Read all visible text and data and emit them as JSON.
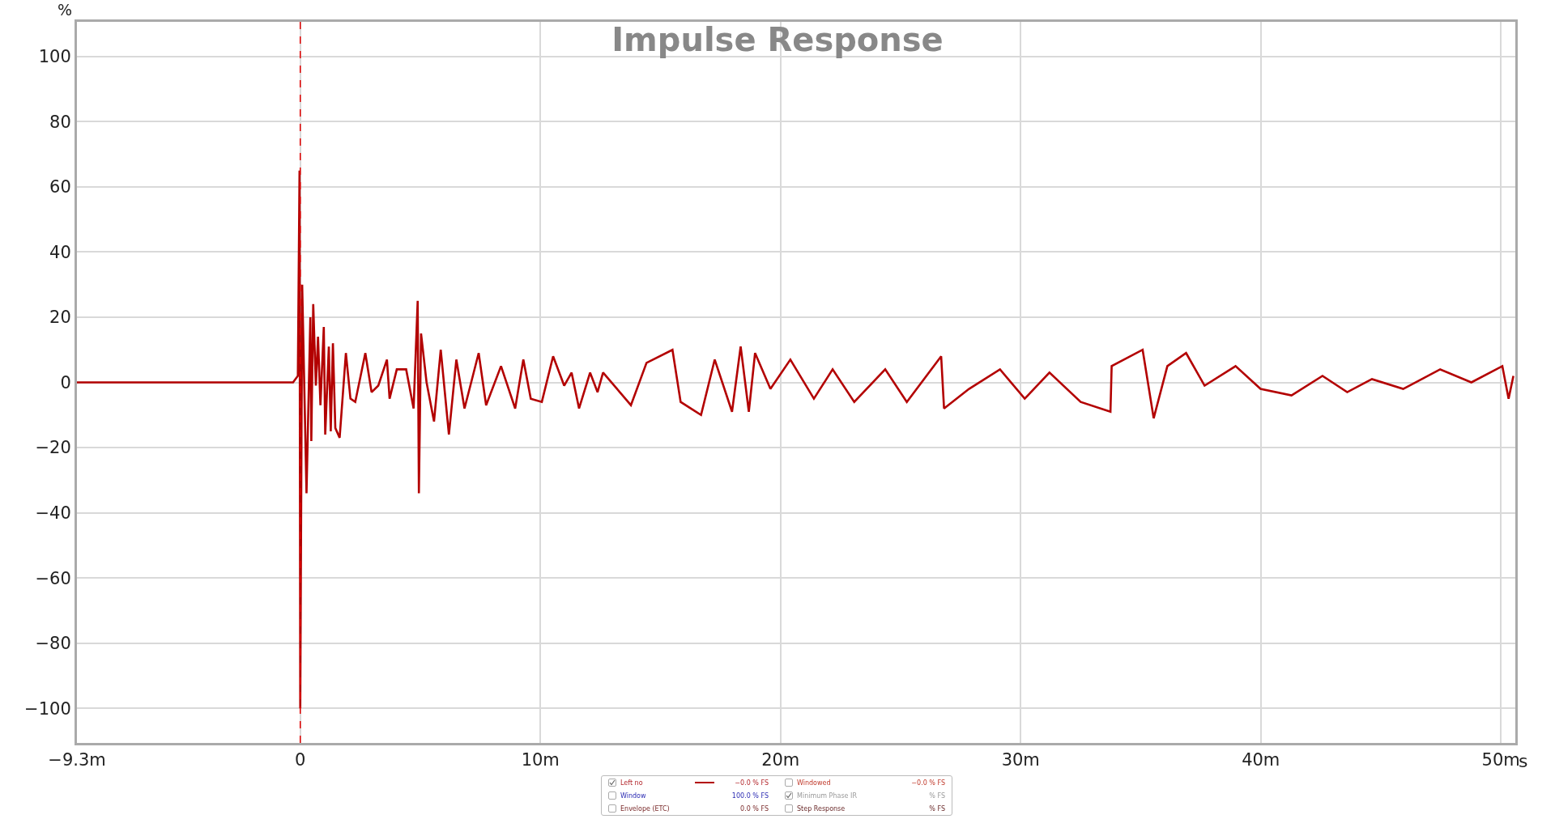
{
  "chart_data": {
    "type": "line",
    "title": "Impulse Response",
    "xlabel": "s",
    "ylabel": "%",
    "xlim": [
      -9.3,
      50.6
    ],
    "ylim": [
      -110.6,
      110.6
    ],
    "xticks": [
      {
        "value": -9.3,
        "label": "−9.3m"
      },
      0,
      {
        "value": 10,
        "label": "10m"
      },
      {
        "value": 20,
        "label": "20m"
      },
      {
        "value": 30,
        "label": "30m"
      },
      {
        "value": 40,
        "label": "40m"
      },
      {
        "value": 50,
        "label": "50m"
      }
    ],
    "yticks": [
      {
        "value": -100,
        "label": "−100"
      },
      {
        "value": -80,
        "label": "−80"
      },
      {
        "value": -60,
        "label": "−60"
      },
      {
        "value": -40,
        "label": "−40"
      },
      {
        "value": -20,
        "label": "−20"
      },
      0,
      20,
      40,
      60,
      80,
      100
    ],
    "grid": true,
    "legend": "bottom",
    "marker": "none",
    "line_style": "solid",
    "ref_lines": [
      {
        "axis": "x",
        "value": 0,
        "label": null,
        "color": "#e00000",
        "line_style": "dashed"
      }
    ],
    "annotations": [
      "−0.0 % FS",
      "Windowed",
      "−0.0 % FS",
      "Window",
      "100.0 % FS",
      "Minimum Phase IR",
      "% FS",
      "Envelope (ETC)",
      "0.0 % FS",
      "Step Response",
      "% FS"
    ],
    "series": [
      {
        "name": "Left no",
        "color": "#b30000",
        "x": [
          -9.3,
          -0.3,
          -0.1,
          -0.03,
          0,
          0.08,
          0.26,
          0.42,
          0.46,
          0.54,
          0.65,
          0.74,
          0.84,
          0.98,
          1.04,
          1.19,
          1.27,
          1.36,
          1.46,
          1.64,
          1.9,
          2.09,
          2.29,
          2.71,
          2.97,
          3.25,
          3.61,
          3.72,
          4.02,
          4.41,
          4.72,
          4.89,
          4.94,
          5.03,
          5.26,
          5.57,
          5.85,
          6.19,
          6.5,
          6.84,
          7.43,
          7.74,
          8.36,
          8.95,
          9.29,
          9.6,
          10.06,
          10.53,
          10.99,
          11.3,
          11.61,
          12.07,
          12.38,
          12.61,
          13.77,
          14.42,
          15.5,
          15.84,
          16.69,
          17.26,
          17.98,
          18.34,
          18.68,
          18.94,
          19.58,
          20.41,
          21.39,
          22.17,
          23.07,
          24.36,
          25.26,
          26.69,
          26.81,
          27.85,
          29.14,
          30.17,
          31.2,
          32.5,
          33.74,
          33.79,
          35.08,
          35.54,
          36.11,
          36.89,
          37.66,
          38.95,
          39.99,
          41.28,
          42.57,
          43.6,
          44.63,
          45.93,
          47.47,
          48.77,
          50.06,
          50.32,
          50.52
        ],
        "values": [
          0,
          0,
          2,
          65,
          -100,
          30,
          -34,
          20,
          -18,
          24,
          -1,
          14,
          -7,
          17,
          -16,
          11,
          -15,
          12,
          -14,
          -17,
          9,
          -5,
          -6,
          9,
          -3,
          -1,
          7,
          -5,
          4,
          4,
          -8,
          25,
          -34,
          15,
          0,
          -12,
          10,
          -16,
          7,
          -8,
          9,
          -7,
          5,
          -8,
          7,
          -5,
          -6,
          8,
          -1,
          3,
          -8,
          3,
          -3,
          3,
          -7,
          6,
          10,
          -6,
          -10,
          7,
          -9,
          11,
          -9,
          9,
          -2,
          7,
          -5,
          4,
          -6,
          4,
          -6,
          8,
          -8,
          -2,
          4,
          -5,
          3,
          -6,
          -9,
          5,
          10,
          -11,
          5,
          9,
          -1,
          5,
          -2,
          -4,
          2,
          -3,
          1,
          -2,
          4,
          0,
          5,
          -5,
          2
        ]
      }
    ]
  }
}
